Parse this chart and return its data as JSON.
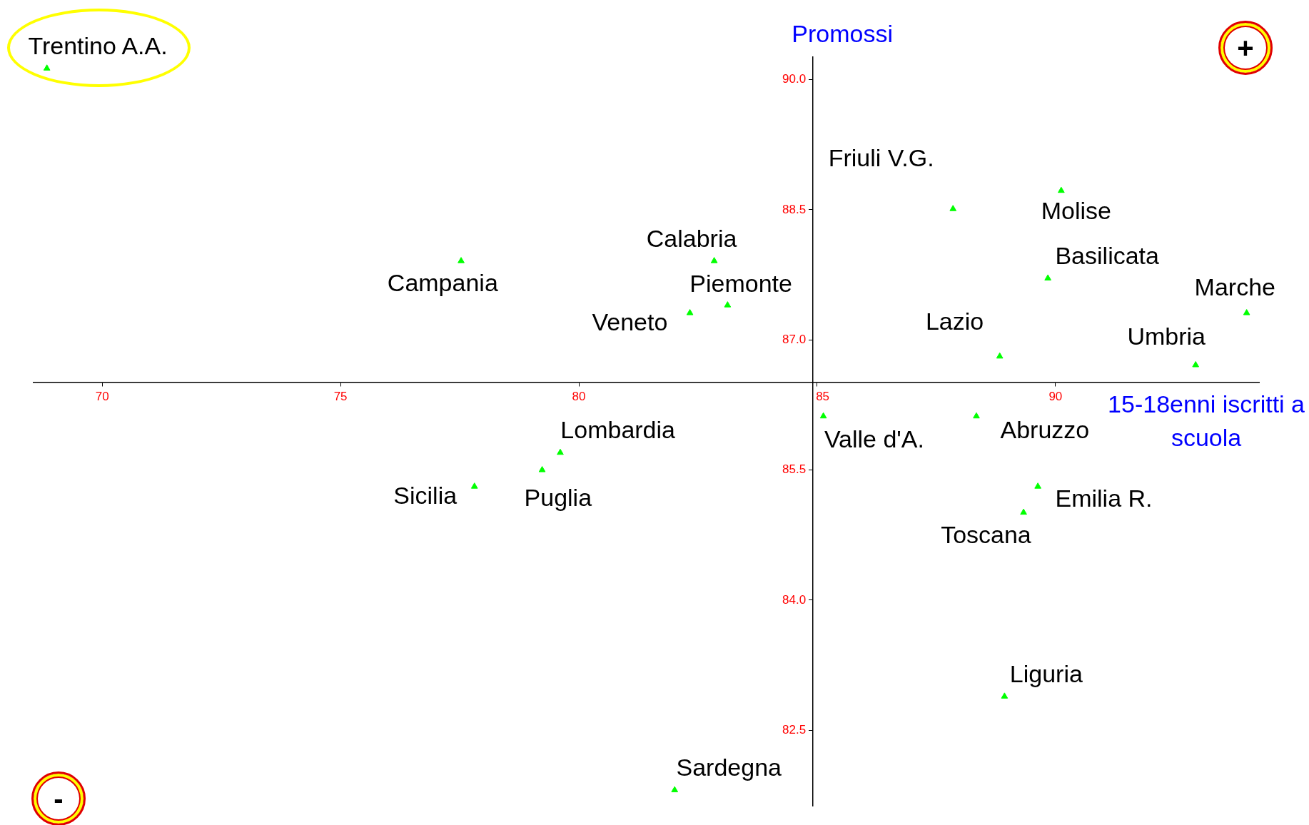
{
  "chart_data": {
    "type": "scatter",
    "xlabel": "15-18enni iscritti a scuola",
    "ylabel": "Promossi",
    "x": [
      68.84,
      77.53,
      82.84,
      83.12,
      82.33,
      87.85,
      90.12,
      89.84,
      94.01,
      88.83,
      92.94,
      85.13,
      88.34,
      79.61,
      79.23,
      77.81,
      89.63,
      89.33,
      88.93,
      82.01
    ],
    "series": [
      {
        "color": "#00ff00",
        "values": [
          90.13,
          87.91,
          87.91,
          87.4,
          87.31,
          88.51,
          88.72,
          87.71,
          87.31,
          86.81,
          86.71,
          86.12,
          86.12,
          85.7,
          85.5,
          85.31,
          85.31,
          85.01,
          82.89,
          81.81
        ]
      }
    ],
    "xlim": [
      68.56,
      94.27
    ],
    "ylim": [
      81.63,
      90.26
    ],
    "xticks": [
      70,
      75,
      80,
      85,
      90
    ],
    "yticks": [
      {
        "value": 82.5,
        "label": "82.5"
      },
      {
        "value": 84,
        "label": "84.0"
      },
      {
        "value": 85.5,
        "label": "85.5"
      },
      {
        "value": 87,
        "label": "87.0"
      },
      {
        "value": 88.5,
        "label": "88.5"
      },
      {
        "value": 90,
        "label": "90.0"
      }
    ],
    "marker": "triangle",
    "grid": false,
    "legend": false,
    "annotations": [
      {
        "text": "Trentino A.A.",
        "x": 68.84,
        "y": 90.13
      },
      {
        "text": "Campania",
        "x": 77.53,
        "y": 87.91
      },
      {
        "text": "Calabria",
        "x": 82.84,
        "y": 87.91
      },
      {
        "text": "Piemonte",
        "x": 83.12,
        "y": 87.4
      },
      {
        "text": "Veneto",
        "x": 82.33,
        "y": 87.31
      },
      {
        "text": "Friuli V.G.",
        "x": 87.85,
        "y": 88.51
      },
      {
        "text": "Molise",
        "x": 90.12,
        "y": 88.72
      },
      {
        "text": "Basilicata",
        "x": 89.84,
        "y": 87.71
      },
      {
        "text": "Marche",
        "x": 94.01,
        "y": 87.31
      },
      {
        "text": "Lazio",
        "x": 88.83,
        "y": 86.81
      },
      {
        "text": "Umbria",
        "x": 92.94,
        "y": 86.71
      },
      {
        "text": "Valle d'A.",
        "x": 85.13,
        "y": 86.12
      },
      {
        "text": "Abruzzo",
        "x": 88.34,
        "y": 86.12
      },
      {
        "text": "Lombardia",
        "x": 79.61,
        "y": 85.7
      },
      {
        "text": "Puglia",
        "x": 79.23,
        "y": 85.5
      },
      {
        "text": "Sicilia",
        "x": 77.81,
        "y": 85.31
      },
      {
        "text": "Emilia R.",
        "x": 89.63,
        "y": 85.31
      },
      {
        "text": "Toscana",
        "x": 89.33,
        "y": 85.01
      },
      {
        "text": "Liguria",
        "x": 88.93,
        "y": 82.89
      },
      {
        "text": "Sardegna",
        "x": 82.01,
        "y": 81.81
      },
      "+",
      "-"
    ]
  }
}
